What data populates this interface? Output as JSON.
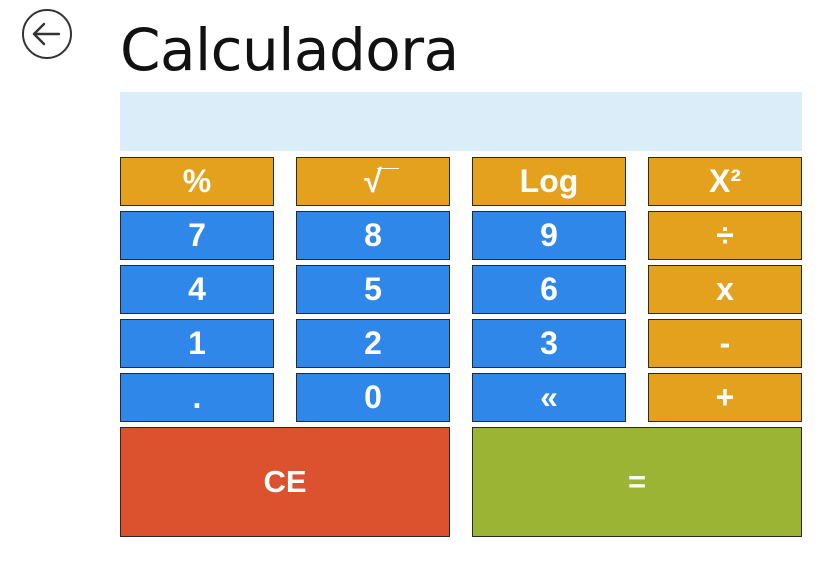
{
  "app": {
    "title": "Calculadora"
  },
  "display": {
    "value": ""
  },
  "keypad": {
    "rows": [
      [
        "%",
        "√",
        "Log",
        "X²"
      ],
      [
        "7",
        "8",
        "9",
        "÷"
      ],
      [
        "4",
        "5",
        "6",
        "x"
      ],
      [
        "1",
        "2",
        "3",
        "-"
      ],
      [
        ".",
        "0",
        "«",
        "+"
      ]
    ],
    "clear_label": "CE",
    "equals_label": "="
  },
  "colors": {
    "function_key": "#e4a11e",
    "number_key": "#2f87ea",
    "clear_key": "#dc522e",
    "equals_key": "#9bb434",
    "display_background": "#daedf8"
  },
  "icons": {
    "back": "arrow-left-circle-icon"
  }
}
